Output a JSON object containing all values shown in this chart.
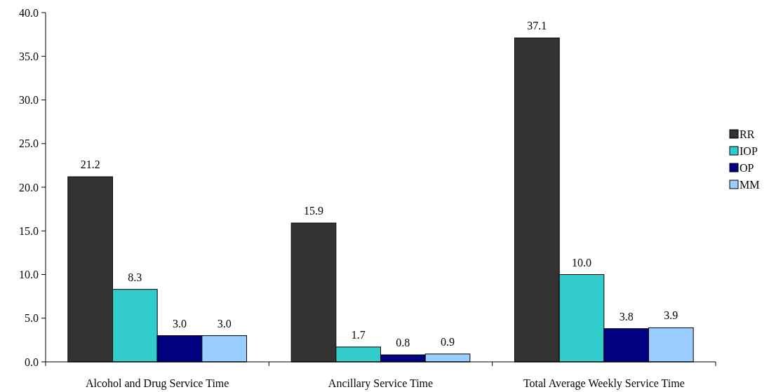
{
  "chart_data": {
    "type": "bar",
    "categories": [
      "Alcohol and Drug Service Time",
      "Ancillary Service Time",
      "Total Average Weekly Service Time"
    ],
    "series": [
      {
        "name": "RR",
        "color": "#333333",
        "values": [
          21.2,
          15.9,
          37.1
        ],
        "value_labels": [
          "21.2",
          "15.9",
          "37.1"
        ]
      },
      {
        "name": "IOP",
        "color": "#33cccc",
        "values": [
          8.3,
          1.7,
          10.0
        ],
        "value_labels": [
          "8.3",
          "1.7",
          "10.0"
        ]
      },
      {
        "name": "OP",
        "color": "#000080",
        "values": [
          3.0,
          0.8,
          3.8
        ],
        "value_labels": [
          "3.0",
          "0.8",
          "3.8"
        ]
      },
      {
        "name": "MM",
        "color": "#99ccff",
        "values": [
          3.0,
          0.9,
          3.9
        ],
        "value_labels": [
          "3.0",
          "0.9",
          "3.9"
        ]
      }
    ],
    "ylim": [
      0,
      40
    ],
    "yticks": [
      {
        "value": 0,
        "label": "0.0"
      },
      {
        "value": 5,
        "label": "5.0"
      },
      {
        "value": 10,
        "label": "10.0"
      },
      {
        "value": 15,
        "label": "15.0"
      },
      {
        "value": 20,
        "label": "20.0"
      },
      {
        "value": 25,
        "label": "25.0"
      },
      {
        "value": 30,
        "label": "30.0"
      },
      {
        "value": 35,
        "label": "35.0"
      },
      {
        "value": 40,
        "label": "40.0"
      }
    ],
    "legend": "right",
    "grid": false
  }
}
